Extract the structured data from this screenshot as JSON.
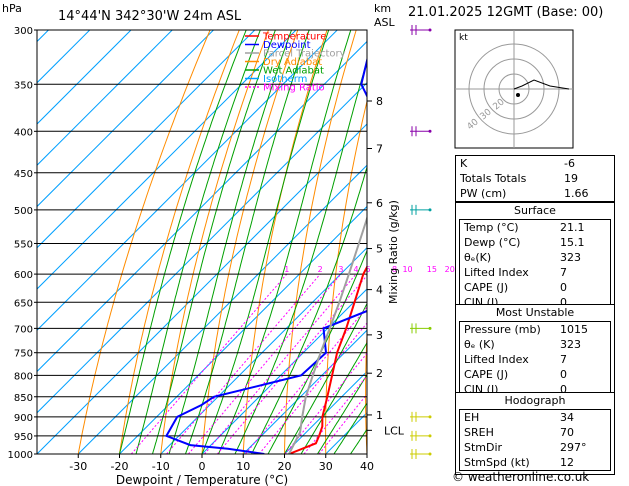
{
  "header": {
    "hpa_label": "hPa",
    "location": "14°44'N 342°30'W 24m ASL",
    "km_label": "km",
    "asl_label": "ASL",
    "date": "21.01.2025 12GMT (Base: 00)"
  },
  "chart_data": {
    "type": "line",
    "title": "14°44'N 342°30'W 24m ASL",
    "xlabel": "Dewpoint / Temperature (°C)",
    "ylabel": "hPa",
    "x_ticks": [
      -30,
      -20,
      -10,
      0,
      10,
      20,
      30,
      40
    ],
    "xlim": [
      -40,
      40
    ],
    "ylim": [
      1000,
      300
    ],
    "y_scale": "log",
    "pressure_ticks": [
      300,
      350,
      400,
      450,
      500,
      550,
      600,
      650,
      700,
      750,
      800,
      850,
      900,
      950,
      1000
    ],
    "legend_placement": "top-left",
    "legend": [
      {
        "name": "Temperature",
        "color": "#ff0000",
        "dash": ""
      },
      {
        "name": "Dewpoint",
        "color": "#0000ff",
        "dash": ""
      },
      {
        "name": "Parcel Trajectory",
        "color": "#a0a0a0",
        "dash": ""
      },
      {
        "name": "Dry Adiabat",
        "color": "#ff8c00",
        "dash": ""
      },
      {
        "name": "Wet Adiabat",
        "color": "#00a000",
        "dash": ""
      },
      {
        "name": "Isotherm",
        "color": "#00a0ff",
        "dash": ""
      },
      {
        "name": "Mixing Ratio",
        "color": "#ff00ff",
        "dash": "2,2"
      }
    ],
    "series": [
      {
        "name": "Temperature",
        "color": "#ff0000",
        "points": [
          [
            1000,
            21.1
          ],
          [
            970,
            25
          ],
          [
            950,
            24
          ],
          [
            925,
            22.5
          ],
          [
            900,
            20.2
          ],
          [
            850,
            16.5
          ],
          [
            800,
            12.5
          ],
          [
            750,
            8.2
          ],
          [
            700,
            4.5
          ],
          [
            650,
            0.2
          ],
          [
            600,
            -4.5
          ],
          [
            550,
            -8
          ],
          [
            500,
            -13.5
          ],
          [
            450,
            -19.5
          ],
          [
            400,
            -26
          ],
          [
            350,
            -33.5
          ],
          [
            300,
            -41
          ]
        ]
      },
      {
        "name": "Dewpoint",
        "color": "#0000ff",
        "points": [
          [
            1000,
            15.1
          ],
          [
            985,
            5
          ],
          [
            975,
            -5
          ],
          [
            950,
            -13
          ],
          [
            900,
            -15
          ],
          [
            870,
            -12
          ],
          [
            850,
            -11
          ],
          [
            800,
            5
          ],
          [
            750,
            5.5
          ],
          [
            700,
            -1
          ],
          [
            650,
            8.5
          ],
          [
            600,
            2.5
          ],
          [
            550,
            -4
          ],
          [
            500,
            -11
          ],
          [
            450,
            -19
          ],
          [
            400,
            -34
          ],
          [
            350,
            -51
          ],
          [
            300,
            -61
          ]
        ]
      },
      {
        "name": "Parcel Trajectory",
        "color": "#a0a0a0",
        "points": [
          [
            1000,
            21.1
          ],
          [
            940,
            18.5
          ],
          [
            900,
            15.3
          ],
          [
            850,
            11.3
          ],
          [
            800,
            7.8
          ],
          [
            750,
            4.2
          ],
          [
            700,
            0.5
          ],
          [
            650,
            -3.5
          ],
          [
            600,
            -8
          ],
          [
            550,
            -13
          ],
          [
            500,
            -18.5
          ],
          [
            450,
            -25
          ],
          [
            400,
            -32
          ],
          [
            350,
            -40
          ],
          [
            300,
            -49
          ]
        ]
      }
    ],
    "mixing_ratio_labels": [
      "1",
      "2",
      "3",
      "4",
      "5",
      "8",
      "10",
      "15",
      "20",
      "25"
    ],
    "altitude_km_ticks": [
      {
        "label": "8",
        "p": 367
      },
      {
        "label": "7",
        "p": 420
      },
      {
        "label": "6",
        "p": 490
      },
      {
        "label": "5",
        "p": 558
      },
      {
        "label": "4",
        "p": 627
      },
      {
        "label": "3",
        "p": 713
      },
      {
        "label": "2",
        "p": 795
      },
      {
        "label": "1",
        "p": 895
      }
    ],
    "lcl": {
      "label": "LCL",
      "p": 935
    },
    "right_axis_label": "Mixing Ratio (g/kg)",
    "wind_barbs": [
      {
        "p": 300,
        "color": "#8800aa"
      },
      {
        "p": 400,
        "color": "#8800aa"
      },
      {
        "p": 500,
        "color": "#00a0a0"
      },
      {
        "p": 700,
        "color": "#88cc00"
      },
      {
        "p": 900,
        "color": "#cccc00"
      },
      {
        "p": 950,
        "color": "#cccc00"
      },
      {
        "p": 1000,
        "color": "#cccc00"
      }
    ]
  },
  "hodograph": {
    "unit_label": "kt",
    "ring_labels": [
      "40",
      "30",
      "20"
    ]
  },
  "indices": {
    "rows": [
      {
        "label": "K",
        "value": "-6"
      },
      {
        "label": "Totals Totals",
        "value": "19"
      },
      {
        "label": "PW (cm)",
        "value": "1.66"
      }
    ]
  },
  "surface": {
    "title": "Surface",
    "rows": [
      {
        "label": "Temp (°C)",
        "value": "21.1"
      },
      {
        "label": "Dewp (°C)",
        "value": "15.1"
      },
      {
        "label": "θₑ(K)",
        "value": "323"
      },
      {
        "label": "Lifted Index",
        "value": "7"
      },
      {
        "label": "CAPE (J)",
        "value": "0"
      },
      {
        "label": "CIN (J)",
        "value": "0"
      }
    ]
  },
  "most_unstable": {
    "title": "Most Unstable",
    "rows": [
      {
        "label": "Pressure (mb)",
        "value": "1015"
      },
      {
        "label": "θₑ (K)",
        "value": "323"
      },
      {
        "label": "Lifted Index",
        "value": "7"
      },
      {
        "label": "CAPE (J)",
        "value": "0"
      },
      {
        "label": "CIN (J)",
        "value": "0"
      }
    ]
  },
  "hodograph_table": {
    "title": "Hodograph",
    "rows": [
      {
        "label": "EH",
        "value": "34"
      },
      {
        "label": "SREH",
        "value": "70"
      },
      {
        "label": "StmDir",
        "value": "297°"
      },
      {
        "label": "StmSpd (kt)",
        "value": "12"
      }
    ]
  },
  "credit": "© weatheronline.co.uk"
}
